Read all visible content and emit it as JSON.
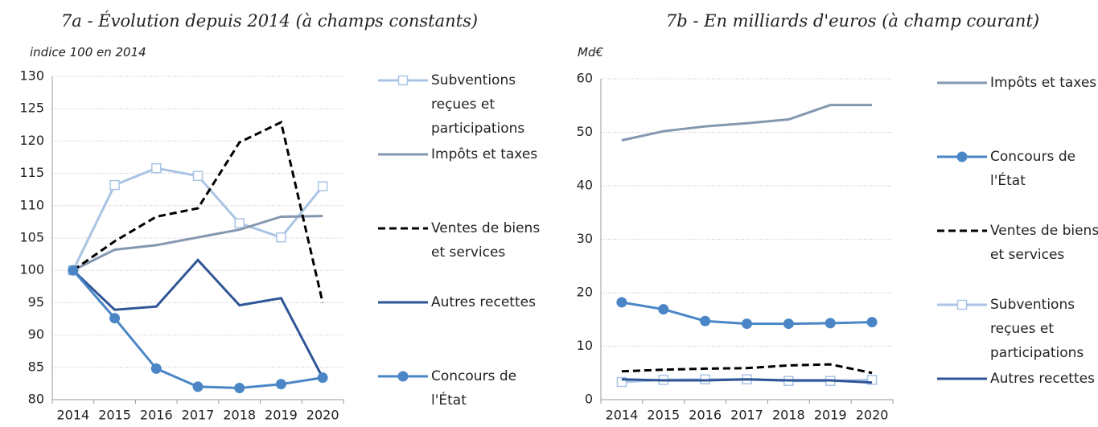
{
  "chart_data": [
    {
      "type": "line",
      "title": "7a - Évolution depuis 2014 (à champs constants)",
      "y_label": "indice 100 en 2014",
      "categories": [
        "2014",
        "2015",
        "2016",
        "2017",
        "2018",
        "2019",
        "2020"
      ],
      "ylim": [
        80,
        130
      ],
      "yticks": [
        80,
        85,
        90,
        95,
        100,
        105,
        110,
        115,
        120,
        125,
        130
      ],
      "grid": true,
      "series": [
        {
          "name": "Subventions reçues et participations",
          "color": "#a9c4e4",
          "marker": "square",
          "values": [
            100,
            113.2,
            115.8,
            114.6,
            107.3,
            105.1,
            113.0
          ]
        },
        {
          "name": "Impôts et taxes",
          "color": "#8497b0",
          "values": [
            100,
            103.2,
            103.9,
            105.1,
            106.3,
            108.3,
            108.4
          ]
        },
        {
          "name": "Ventes de biens et services",
          "color": "#000000",
          "dash": true,
          "values": [
            100,
            104.5,
            108.3,
            109.6,
            119.8,
            122.9,
            95.0
          ]
        },
        {
          "name": "Autres recettes",
          "color": "#2f5597",
          "values": [
            100,
            93.9,
            94.4,
            101.6,
            94.6,
            95.7,
            83.4
          ]
        },
        {
          "name": "Concours de l'État",
          "color": "#4a86c6",
          "marker": "circle",
          "values": [
            100,
            92.6,
            84.8,
            82.0,
            81.8,
            82.4,
            83.4
          ]
        }
      ]
    },
    {
      "type": "line",
      "title": "7b - En milliards d'euros (à champ courant)",
      "y_label": "Md€",
      "categories": [
        "2014",
        "2015",
        "2016",
        "2017",
        "2018",
        "2019",
        "2020"
      ],
      "ylim": [
        0,
        60
      ],
      "yticks": [
        0,
        10,
        20,
        30,
        40,
        50,
        60
      ],
      "grid": true,
      "series": [
        {
          "name": "Impôts et taxes",
          "color": "#8497b0",
          "values": [
            48.5,
            50.2,
            51.1,
            51.7,
            52.4,
            55.1,
            55.1
          ]
        },
        {
          "name": "Concours de l'État",
          "color": "#4a86c6",
          "marker": "circle",
          "values": [
            18.2,
            16.9,
            14.7,
            14.2,
            14.2,
            14.3,
            14.5
          ]
        },
        {
          "name": "Ventes de biens et services",
          "color": "#000000",
          "dash": true,
          "values": [
            5.3,
            5.6,
            5.8,
            5.9,
            6.4,
            6.6,
            5.0
          ]
        },
        {
          "name": "Subventions reçues et participations",
          "color": "#a9c4e4",
          "marker": "square",
          "values": [
            3.3,
            3.7,
            3.8,
            3.8,
            3.5,
            3.5,
            3.7
          ]
        },
        {
          "name": "Autres recettes",
          "color": "#2f5597",
          "values": [
            3.8,
            3.6,
            3.6,
            3.8,
            3.6,
            3.6,
            3.2
          ]
        }
      ]
    }
  ]
}
